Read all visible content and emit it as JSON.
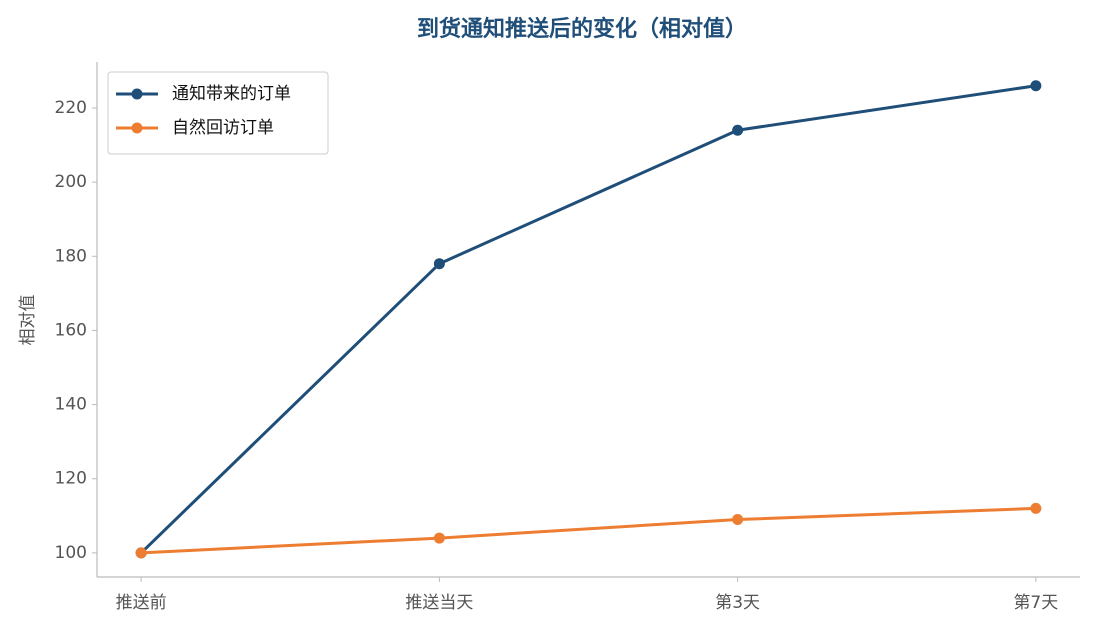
{
  "chart_data": {
    "type": "line",
    "title": "到货通知推送后的变化（相对值）",
    "ylabel": "相对值",
    "categories": [
      "推送前",
      "推送当天",
      "第3天",
      "第7天"
    ],
    "series": [
      {
        "name": "通知带来的订单",
        "color": "#1f4e79",
        "values": [
          100,
          178,
          214,
          226
        ]
      },
      {
        "name": "自然回访订单",
        "color": "#ed7d31",
        "values": [
          100,
          104,
          109,
          112
        ]
      }
    ],
    "ylim": [
      93.5,
      232.4
    ],
    "yticks": [
      100,
      120,
      140,
      160,
      180,
      200,
      220
    ],
    "legend": "upper left",
    "grid": false
  }
}
